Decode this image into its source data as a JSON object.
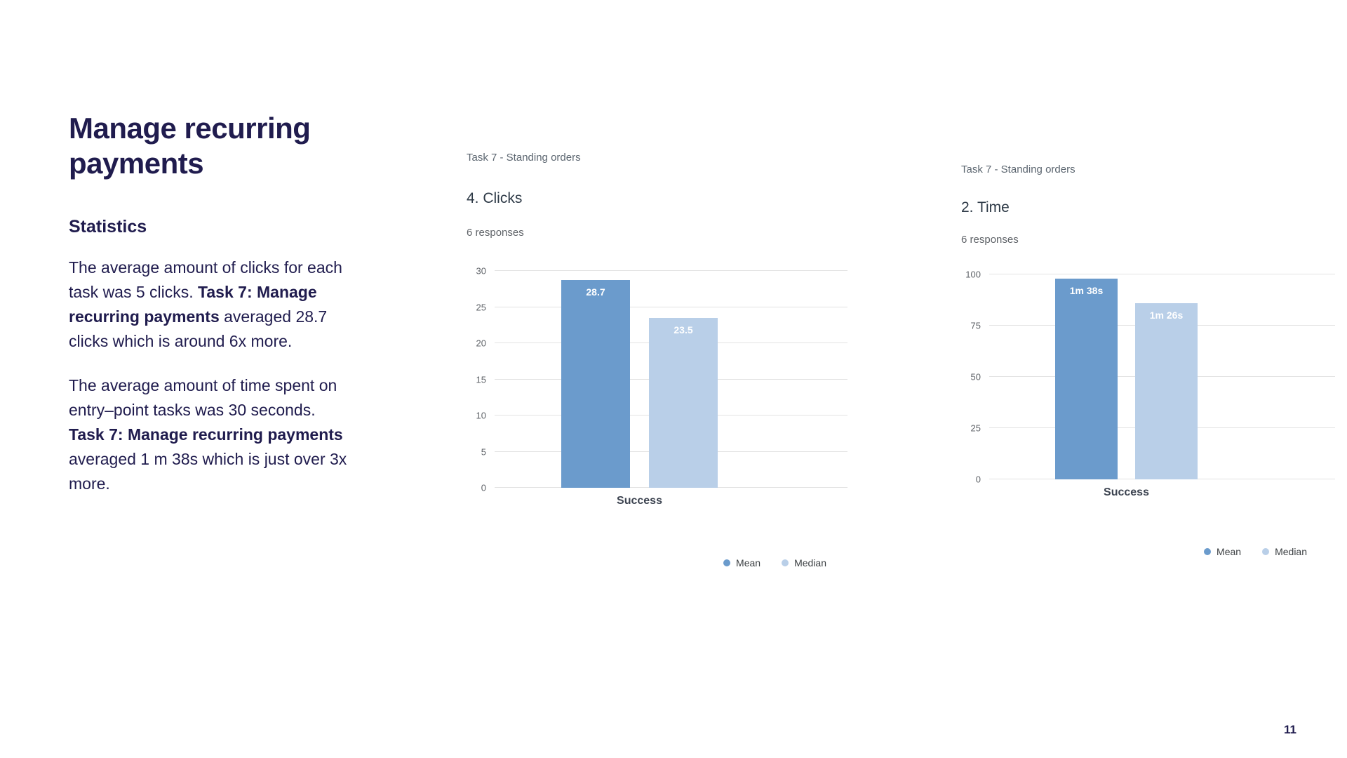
{
  "slide": {
    "title": "Manage recurring payments",
    "page_number": "11"
  },
  "statistics": {
    "heading": "Statistics",
    "paragraphs": [
      {
        "before": "The average amount of clicks for each task was 5 clicks. ",
        "bold": "Task 7: Manage recurring payments",
        "after": " averaged 28.7 clicks which is around 6x more."
      },
      {
        "before": "The average amount of time spent on entry–point tasks was 30 seconds. ",
        "bold": "Task 7: Manage recurring payments",
        "after": " averaged 1 m 38s which is just over 3x more."
      }
    ]
  },
  "colors": {
    "mean_bar": "#6b9bcc",
    "median_bar": "#b9cfe8",
    "text_dark": "#201c4e"
  },
  "chart_data": [
    {
      "type": "bar",
      "header": "Task 7 - Standing orders",
      "title": "4. Clicks",
      "subtitle": "6 responses",
      "categories": [
        "Success"
      ],
      "xlabel": "Success",
      "ylim": [
        0,
        30
      ],
      "yticks": [
        0,
        5,
        10,
        15,
        20,
        25,
        30
      ],
      "grid": true,
      "legend_position": "bottom-right",
      "series": [
        {
          "name": "Mean",
          "values": [
            28.7
          ],
          "value_labels": [
            "28.7"
          ],
          "color": "#6b9bcc"
        },
        {
          "name": "Median",
          "values": [
            23.5
          ],
          "value_labels": [
            "23.5"
          ],
          "color": "#b9cfe8"
        }
      ]
    },
    {
      "type": "bar",
      "header": "Task 7 - Standing orders",
      "title": "2. Time",
      "subtitle": "6 responses",
      "categories": [
        "Success"
      ],
      "xlabel": "Success",
      "ylim": [
        0,
        100
      ],
      "yticks": [
        0,
        25,
        50,
        75,
        100
      ],
      "grid": true,
      "legend_position": "bottom-right",
      "series": [
        {
          "name": "Mean",
          "values": [
            98
          ],
          "value_labels": [
            "1m 38s"
          ],
          "color": "#6b9bcc"
        },
        {
          "name": "Median",
          "values": [
            86
          ],
          "value_labels": [
            "1m 26s"
          ],
          "color": "#b9cfe8"
        }
      ]
    }
  ]
}
